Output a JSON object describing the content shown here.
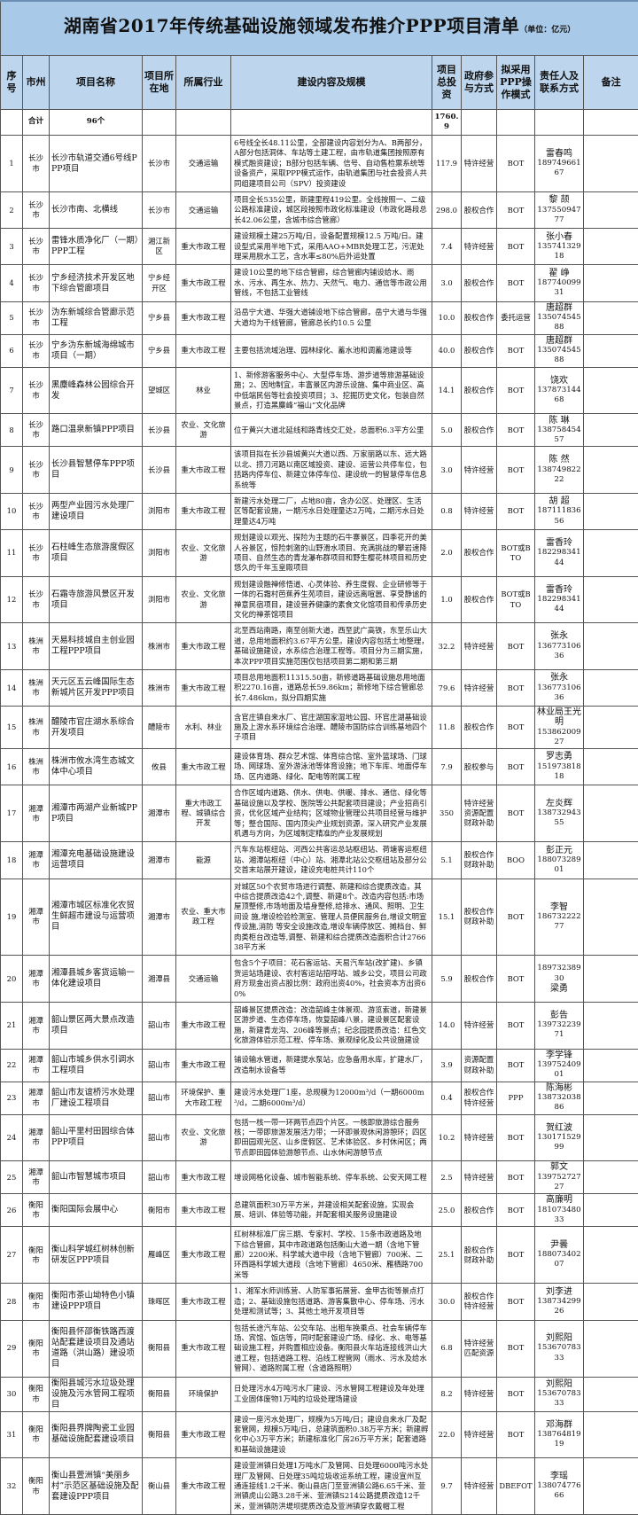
{
  "title": {
    "main": "湖南省2017年传统基础设施领域发布推介PPP项目清单",
    "unit": "（单位：亿元）"
  },
  "headers": [
    "序号",
    "市州",
    "项目名称",
    "项目所在地",
    "所属行业",
    "建设内容及规模",
    "项目总投资",
    "政府参与方式",
    "拟采用PPP操作模式",
    "责任人及联系方式",
    "备注"
  ],
  "summary": {
    "label": "合计",
    "count": "96个",
    "total": "1760.9"
  },
  "rows": [
    {
      "no": "1",
      "city": "长沙市",
      "name": "长沙市轨道交通6号线PPP项目",
      "loc": "长沙市",
      "ind": "交通运输",
      "desc": "6号线全长48.11公里，全部建设内容划分为A、B两部分，A部分包括洞体、车站等土建工程，由市轨道集团按照原有模式融资建设；B部分包括车辆、信号、自动售检票系统等设备资产，采取PPP模式运作，由轨道集团与社会投资人共同组建项目公司（SPV）投资建设",
      "inv": "117.9",
      "gov": [
        "特许经营"
      ],
      "mode": "BOT",
      "contact": [
        "雷春鸣",
        "18974966167"
      ]
    },
    {
      "no": "2",
      "city": "长沙市",
      "name": "长沙市南、北横线",
      "loc": "长沙市",
      "ind": "交通运输",
      "desc": "项目全长535公里，新建里程419公里。全线按照一、二级公路标准建设，城区段按照市政化标准建设（市政化路段总长42.06公里，含城市综合管廊）",
      "inv": "298.0",
      "gov": [
        "股权合作"
      ],
      "mode": "BOT",
      "contact": [
        "黎 颉",
        "13755094777"
      ]
    },
    {
      "no": "3",
      "city": "长沙市",
      "name": "雷锋水质净化厂（一期）PPP工程",
      "loc": "湘江新区",
      "ind": "重大市政工程",
      "desc": "建设规模土建25万吨/日，设备配置规模12.5 万吨/日。建设型式采用半地下式，采用AAO+MBR处理工艺，污泥处理采用脱水工艺，含水率≤80%后外运处置",
      "inv": "7.4",
      "gov": [
        "特许经营"
      ],
      "mode": "BOT",
      "contact": [
        "张小春",
        "13574132918"
      ]
    },
    {
      "no": "4",
      "city": "长沙市",
      "name": "宁乡经济技术开发区地下综合管廊项目",
      "loc": "宁乡经开区",
      "ind": "重大市政工程",
      "desc": "建设10公里的地下综合管廊，综合管廊内铺设给水、雨水、污水、再生水、热力、天然气、电力、通信等市政公用管线，不包括工业管线",
      "inv": "3.0",
      "gov": [
        "股权合作"
      ],
      "mode": "BOT",
      "contact": [
        "翟 峥",
        "18774009931"
      ]
    },
    {
      "no": "5",
      "city": "长沙市",
      "name": "沩东新城综合管廊示范工程",
      "loc": "宁乡县",
      "ind": "重大市政工程",
      "desc": "沿岳宁大道、华强大道铺设地下综合管廊，岳宁大道与华强大道均为干线管廊，管廊总长约10.5 公里",
      "inv": "10.0",
      "gov": [
        "股权合作"
      ],
      "mode": "委托运营",
      "contact": [
        "唐超群",
        "13507454588"
      ]
    },
    {
      "no": "6",
      "city": "长沙市",
      "name": "宁乡沩东新城海绵城市项目（一期）",
      "loc": "宁乡县",
      "ind": "重大市政工程",
      "desc": "主要包括流域治理、园林绿化、蓄水池和调蓄池建设等",
      "inv": "40.0",
      "gov": [
        "股权合作"
      ],
      "mode": "BOT",
      "contact": [
        "唐超群",
        "13507454588"
      ]
    },
    {
      "no": "7",
      "city": "长沙市",
      "name": "黑麋峰森林公园综合开发",
      "loc": "望城区",
      "ind": "林业",
      "desc": "1、新修游客服务中心、大型停车场、游步道等旅游基础设施；2、因地制宜，丰富景区内游乐设施、集中商业区、高中低端民俗等社会投资项目；3、挖掘历史文化，包装自然景点，打造黑麋峰“福山”文化品牌",
      "inv": "14.1",
      "gov": [
        "股权合作"
      ],
      "mode": "BOT",
      "contact": [
        "饶欢",
        "13787314468"
      ]
    },
    {
      "no": "8",
      "city": "长沙市",
      "name": "路口温泉新镇PPP项目",
      "loc": "长沙县",
      "ind": "农业、文化旅游",
      "desc": "位于黄兴大道北延线和路青线交汇处，总面积6.3平方公里",
      "inv": "5.0",
      "gov": [
        "股权合作"
      ],
      "mode": "BOT",
      "contact": [
        "陈 琳",
        "13875845457"
      ]
    },
    {
      "no": "9",
      "city": "长沙市",
      "name": "长沙县智慧停车PPP项目",
      "loc": "长沙县",
      "ind": "重大市政工程",
      "desc": "该项目拟在长沙县城黄兴大道以西、万家丽路以东、远大路以北、捞刀河路以南区域投资、建设、运营公共停车位，包括路内停车位、新建立体停车位、建设统一的智慧停车信息系统等",
      "inv": "3.0",
      "gov": [
        "特许经营"
      ],
      "mode": "BOT",
      "contact": [
        "陈 然",
        "13874982222"
      ]
    },
    {
      "no": "10",
      "city": "长沙市",
      "name": "两型产业园污水处理厂建设项目",
      "loc": "浏阳市",
      "ind": "重大市政工程",
      "desc": "新建污水处理二厂，占地80亩，含办公区、处理区、生活区等配套设施，一期污水日处理量达2万吨，二期污水日处理量达4万吨",
      "inv": "0.8",
      "gov": [
        "特许经营"
      ],
      "mode": "BOT",
      "contact": [
        "胡 超",
        "18711183656"
      ]
    },
    {
      "no": "11",
      "city": "长沙市",
      "name": "石柱峰生态旅游度假区项目",
      "loc": "浏阳市",
      "ind": "农业、文化旅游",
      "desc": "规划建设以观光、探险为主题的石牛寨景区，四季花开的美人谷景区，惊险刺激的山野滑水项目、充满挑战的攀岩速降项目、自然生态的青龙瀑布群项目和野生樱花林项目和历史悠久的千年玉皇殿项目",
      "inv": "2.0",
      "gov": [
        "股权合作"
      ],
      "mode": "BOT或BTO",
      "contact": [
        "雷香玲",
        "18229834144"
      ]
    },
    {
      "no": "12",
      "city": "长沙市",
      "name": "石霜寺旅游风景区开发项目",
      "loc": "浏阳市",
      "ind": "农业、文化旅游",
      "desc": "规划建设融禅修悟道、心灵体验、养生度假、企业研修等于一体的石霜村芭蕉养生苑项目，建设远离喧嚣、享受静谧的禅意民宿项目，建设营养健康的素食文化馆项目和传承历史文化的禅茶馆项目",
      "inv": "1.0",
      "gov": [
        "股权合作"
      ],
      "mode": "BOT或BTO",
      "contact": [
        "雷香玲",
        "18229834144"
      ]
    },
    {
      "no": "13",
      "city": "株洲市",
      "name": "天易科技城自主创业园工程PPP项目",
      "loc": "株洲市",
      "ind": "重大市政工程",
      "desc": "北至西站南路，南至创新大道，西至武广高铁，东至乐山大道，总用地面积约3.67平方公里。建设内容包括土地整理，基础设施建设，水系综合治理工程等。项目分为三期实施，本次PPP项目实施范围仅包括项目第二期和第三期",
      "inv": "32.2",
      "gov": [
        "特许经营"
      ],
      "mode": "BOT",
      "contact": [
        "张永",
        "13677310636"
      ]
    },
    {
      "no": "14",
      "city": "株洲市",
      "name": "天元区五云峰国际生态新城片区开发PPP项目",
      "loc": "株洲市",
      "ind": "重大市政工程",
      "desc": "项目总用地面积11315.50亩，新修道路基础设施总用地面积2270.16亩，道路总长59.86km；新修地下综合管廊总长7.486km，拟分四期实施",
      "inv": "79.6",
      "gov": [
        "特许经营"
      ],
      "mode": "BOT",
      "contact": [
        "张永",
        "13677310636"
      ]
    },
    {
      "no": "15",
      "city": "株洲市",
      "name": "醴陵市官庄湖水系综合开发项目",
      "loc": "醴陵市",
      "ind": "水利、林业",
      "desc": "含官庄镇自来水厂、官庄湖国家湿地公园、环官庄湖基础设施及上游水系环境综合治理、醴陵市国防综合训练基地四个子项目",
      "inv": "11.8",
      "gov": [
        "股权合作"
      ],
      "mode": "BOT",
      "contact": [
        "林业局王光明",
        "15386200927"
      ]
    },
    {
      "no": "16",
      "city": "株洲市",
      "name": "株洲市攸水湾生态城文体中心项目",
      "loc": "攸县",
      "ind": "重大市政工程",
      "desc": "建设体育场、群众艺术馆、体育综合馆、室外篮球场、门球场、网球场、室外游泳池等体育设施；地下车库、地面停车场、区内道路、绿化、配电等附属工程",
      "inv": "7.9",
      "gov": [
        "股权参与"
      ],
      "mode": "BOT",
      "contact": [
        "罗志勇",
        "15197381818"
      ]
    },
    {
      "no": "17",
      "city": "湘潭市",
      "name": "湘潭市两湖产业新城PPP项目",
      "loc": "湘潭市",
      "ind": "重大市政工程、城镇综合开发",
      "desc": "合作区域内道路、供水、供电、供暖、排水、通信、绿化等基础设施以及学校、医院等公共配套项目建设；产业招商引资，优化区域产业结构；区域物业管理公共项目经营与维护等；整合国际、国内顶尖产业规划资源，深入研究产业发展机遇与方向，为区域制定精准的产业发展规划",
      "inv": "350",
      "gov": [
        "特许经营",
        "资源配置",
        "财政补助"
      ],
      "mode": "BOT",
      "contact": [
        "左炎辉",
        "13873294355"
      ]
    },
    {
      "no": "18",
      "city": "湘潭市",
      "name": "湘潭充电基础设施建设运营项目",
      "loc": "湘潭市",
      "ind": "能源",
      "desc": "汽车东站枢纽站、河西公共客运总站枢纽站、荷塘客运枢纽站、湘潭站枢纽（中心）站、湘潭北站公交枢纽站及部分公交首末站展开建设，建设充电桩共计110个",
      "inv": "5.1",
      "gov": [
        "股权合作",
        "财政补助"
      ],
      "mode": "BOO",
      "contact": [
        "彭正元",
        "18807328901"
      ]
    },
    {
      "no": "19",
      "city": "湘潭市",
      "name": "湘潭市城区标准化农贸生鲜超市建设与运营项目",
      "loc": "湘潭市",
      "ind": "农业、重大市政工程",
      "desc": "对城区50个农贸市场进行调整、新建和综合提质改造，其中综合提质改造42个,调整、新建8个。改造内容包括:市场屋顶整修,市场地面及墙身整修,给排水、通风、照明、卫生间设 施,增设检验检测室、管理人员便民服务台,增设文明宣传设施,消防 等安全设施改造,增设车辆停放区、摊档台、鲜肉类柜台改造等,调整、新建和综合提质改造面积合计276638平方米",
      "inv": "15.1",
      "gov": [
        "股权合作",
        "财政补助"
      ],
      "mode": "BOT",
      "contact": [
        "李智",
        "18673222277"
      ]
    },
    {
      "no": "20",
      "city": "湘潭市",
      "name": "湘潭县城乡客货运输一体化建设项目",
      "loc": "湘潭县",
      "ind": "交通运输",
      "desc": "包含5个子项目：花石客运站、天易汽车站(改扩建)、乡镇货运站场建设、农村客运站招呼站、城乡公交，项目公司政府方现金出资占股比例：政府出资40%，社会资本方出资60%",
      "inv": "5.9",
      "gov": [
        "股权合作"
      ],
      "mode": "BOT",
      "contact": [
        "18973238930",
        "梁勇"
      ]
    },
    {
      "no": "21",
      "city": "湘潭市",
      "name": "韶山景区两大景点改造项目",
      "loc": "韶山市",
      "ind": "重大市政工程",
      "desc": "韶峰景区提质改造：改造韶峰主体景观、游览索道，新建景区游步道、生态停车场，恢复韶峰八景，建设景区配套设施，新建青龙沟、206峰等景点；纪念园提质改造：红色文化旅游体验示范工程、停车场、景观绿化及公共设施建设",
      "inv": "14.0",
      "gov": [
        "特许经营"
      ],
      "mode": "BOT",
      "contact": [
        "彭告",
        "13973223971"
      ]
    },
    {
      "no": "22",
      "city": "湘潭市",
      "name": "韶山市城乡供水引调水工程项目",
      "loc": "韶山市",
      "ind": "重大市政工程",
      "desc": "铺设输水管道，新建提水泵站，应急备用水库，扩建水厂，改造制水设备等",
      "inv": "3.9",
      "gov": [
        "资源配置",
        "财政补助"
      ],
      "mode": "BOT",
      "contact": [
        "李学锋",
        "13975240901"
      ]
    },
    {
      "no": "23",
      "city": "湘潭市",
      "name": "韶山市友谊桥污水处理厂建设工程项目",
      "loc": "韶山市",
      "ind": "环境保护、重大市政工程",
      "desc": "建设污水处理厂1座，总规模为12000m³/d（一期6000m³/d，二期6000m³/d）",
      "inv": "0.4",
      "gov": [
        "股权合作",
        "特许经营"
      ],
      "mode": "PPP",
      "contact": [
        "陈海彬",
        "13873203886"
      ]
    },
    {
      "no": "24",
      "city": "湘潭市",
      "name": "韶山平里村田园综合体PPP项目",
      "loc": "韶山市",
      "ind": "农业、文化旅游",
      "desc": "包括一核一带一环两节点四个片区。一核即旅游综合服务核；一带即旅游发展活力带；一环即景观休闲游憩环；四区即田园观光区、山乡度假区、艺术体验区、乡村休闲区；两节点即田园体验游憩节点、山水休闲游憩节点",
      "inv": "10.2",
      "gov": [
        "特许经营"
      ],
      "mode": "BOT",
      "contact": [
        "贺红波",
        "13017152999"
      ]
    },
    {
      "no": "25",
      "city": "湘潭市",
      "name": "韶山市智慧城市项目",
      "loc": "韶山市",
      "ind": "重大市政工程",
      "desc": "增设网格化设备、城市智能系统、停车系统、公安天网工程",
      "inv": "2.5",
      "gov": [
        "特许经营"
      ],
      "mode": "BOT",
      "contact": [
        "郭文",
        "13975272727"
      ]
    },
    {
      "no": "26",
      "city": "衡阳市",
      "name": "衡阳国际会展中心",
      "loc": "衡阳市",
      "ind": "重大市政工程",
      "desc": "总建筑面积30万平方米，并建设相关配套设施，实现会展、培训、体验等功能，并配套相关服务设施建设",
      "inv": "25.0",
      "gov": [
        "股权合作"
      ],
      "mode": "BOT",
      "contact": [
        "高廉明",
        "18107348033"
      ]
    },
    {
      "no": "27",
      "city": "衡阳市",
      "name": "衡山科学城红树林创新研发区PPP项目",
      "loc": "雁峰区",
      "ind": "重大市政工程",
      "desc": "红树林标准厂房三期、专家村、学校、15条市政道路及地下综合管廊，其中市政道路包括衡山大道一期（含地下管廊）2200米、科学城大道中段（含地下管廊）700米、二环西路科学城大道段（含地下管廊）4650米、雁栖路700米等",
      "inv": "25.1",
      "gov": [
        "股权合作",
        "财政补助"
      ],
      "mode": "BOT",
      "contact": [
        "尹曇",
        "18807340207"
      ]
    },
    {
      "no": "28",
      "city": "衡阳市",
      "name": "衡阳市茶山坳特色小镇建设PPP项目",
      "loc": "珠晖区",
      "ind": "重大市政工程",
      "desc": "1、湘军水师训练营、人防军事拓展营、金甲古街等景点打造；2、基础设施包括道路、游客集散中心、停车场、污水处理和测试等；3、其他土地开发项目等",
      "inv": "30.0",
      "gov": [
        "股权合作",
        "特许经营"
      ],
      "mode": "BOT",
      "contact": [
        "刘李进",
        "13873429926"
      ]
    },
    {
      "no": "29",
      "city": "衡阳市",
      "name": "衡阳县怀邵衡铁路西渡站配套建设项目及通站道路（洪山路）建设项目",
      "loc": "衡阳县",
      "ind": "重大市政工程",
      "desc": "包括长途汽车站、公交车站、出租车换乘点、社会车辆停车场、宾馆、饭店等，同时配套建设广场、绿化、水、电等基础设施工程，并购置相应设备。衡阳县火车站连接线洪山大道工程，包括道路工程、沿线工程管网（雨水、污水及给水管网）、道路附属工程（含道路照明）",
      "inv": "6.8",
      "gov": [
        "特许经营",
        "匹配资源"
      ],
      "mode": "BOT",
      "contact": [
        "刘熙阳",
        "15367078333"
      ]
    },
    {
      "no": "30",
      "city": "衡阳市",
      "name": "衡阳县城污水垃圾处理设施及污水管网工程项目",
      "loc": "衡阳县",
      "ind": "环境保护",
      "desc": "日处理污水4万吨污水厂建设、污水管网工程建设及年处理工业固体废物1万吨的垃圾处理场建设",
      "inv": "8.2",
      "gov": [
        "特许经营"
      ],
      "mode": "BOT",
      "contact": [
        "刘熙阳",
        "15367078333"
      ]
    },
    {
      "no": "31",
      "city": "衡阳市",
      "name": "衡阳县界牌陶瓷工业园基础设施配套建设项目",
      "loc": "衡阳县",
      "ind": "重大市政工程",
      "desc": "建设一座污水处理厂，规模为5万吨/日；建设自来水厂及配套管网，规模5万吨/日，总建筑面积0.38万平方米；新建孵化中心3万平方米；新建标准化厂房26万平方米；配套道路和基础设施建设",
      "inv": "22.0",
      "gov": [
        "特许经营"
      ],
      "mode": "BOT",
      "contact": [
        "邓海群",
        "13876481919"
      ]
    },
    {
      "no": "32",
      "city": "衡阳市",
      "name": "衡山县萱洲镇“美丽乡村”示范区基础设施及配套建设PPP项目",
      "loc": "衡山县",
      "ind": "重大市政工程",
      "desc": "建设萱洲镇日处理1万吨水厂及管网、日处理6000吨污水处理厂及管网、日处理35吨垃圾收运系统工程，建设宣州互通连接线1.2千米、衡山县店门至萱洲镇公路6.65千米、萱洲镇虎山公路3.28千米、萱洲镇S214公路提质改造12千米，萱洲镇防洪堤坝提质改造及萱洲镇穿衣戴帽工程",
      "inv": "9.7",
      "gov": [
        "特许经营"
      ],
      "mode": "DBEFOT",
      "contact": [
        "李瑶",
        "13807477666"
      ]
    }
  ]
}
